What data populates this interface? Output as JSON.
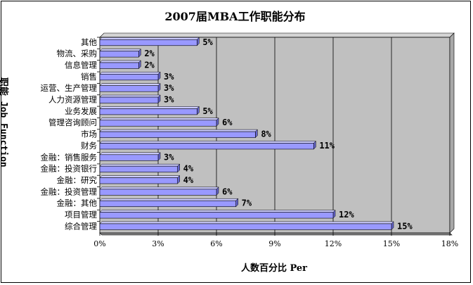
{
  "chart_data": {
    "type": "bar",
    "orientation": "horizontal",
    "title": "2007届MBA工作职能分布",
    "xlabel": "人数百分比 Per",
    "ylabel": "职能 Job Function",
    "categories": [
      "其他",
      "物流、采购",
      "信息管理",
      "销售",
      "运营、生产管理",
      "人力资源管理",
      "业务发展",
      "管理咨询顾问",
      "市场",
      "财务",
      "金融：销售服务",
      "金融：投资银行",
      "金融：研究",
      "金融：投资管理",
      "金融：其他",
      "项目管理",
      "综合管理"
    ],
    "values": [
      5,
      2,
      2,
      3,
      3,
      3,
      5,
      6,
      8,
      11,
      3,
      4,
      4,
      6,
      7,
      12,
      15
    ],
    "data_labels": [
      "5%",
      "2%",
      "2%",
      "3%",
      "3%",
      "3%",
      "5%",
      "6%",
      "8%",
      "11%",
      "3%",
      "4%",
      "4%",
      "6%",
      "7%",
      "12%",
      "15%"
    ],
    "xlim": [
      0,
      18
    ],
    "x_ticks": [
      "0%",
      "3%",
      "6%",
      "9%",
      "12%",
      "15%",
      "18%"
    ],
    "grid": true,
    "bar_color": "#9999ff",
    "plot_background": "#c0c0c0"
  }
}
